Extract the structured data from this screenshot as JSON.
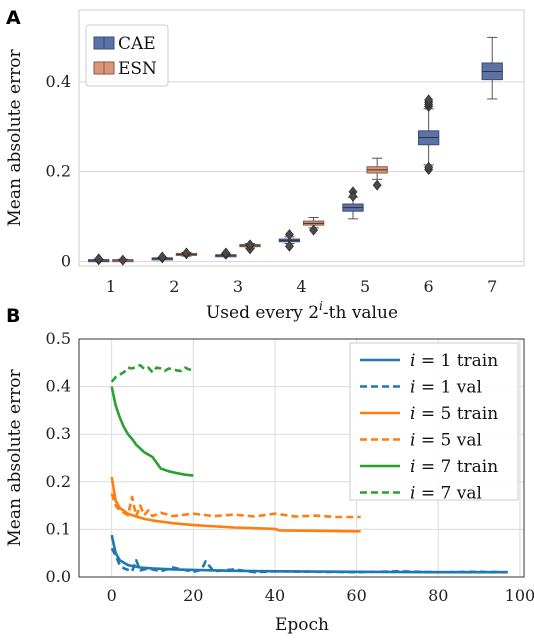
{
  "figure": {
    "panel_a_letter": "A",
    "panel_b_letter": "B"
  },
  "chart_data": [
    {
      "type": "box",
      "panel": "A",
      "xlabel": "Used every 2",
      "xlabel_sup": "i",
      "xlabel_tail": "-th value",
      "ylabel": "Mean absolute error",
      "ylim": [
        -0.01,
        0.56
      ],
      "yticks": [
        0,
        0.2,
        0.4
      ],
      "ytick_labels": [
        "0",
        "0.2",
        "0.4"
      ],
      "categories": [
        "1",
        "2",
        "3",
        "4",
        "5",
        "6",
        "7"
      ],
      "grid": "horizontal",
      "legend_position": "top-left",
      "colors": {
        "CAE": "#5a72a8",
        "ESN": "#d99679"
      },
      "series": [
        {
          "name": "CAE",
          "boxes": [
            {
              "x": "1",
              "q1": 0.002,
              "median": 0.003,
              "q3": 0.004,
              "whisker_low": 0.001,
              "whisker_high": 0.005,
              "outliers": [
                0.004,
                0.006
              ]
            },
            {
              "x": "2",
              "q1": 0.006,
              "median": 0.007,
              "q3": 0.008,
              "whisker_low": 0.005,
              "whisker_high": 0.009,
              "outliers": [
                0.008,
                0.01
              ]
            },
            {
              "x": "3",
              "q1": 0.013,
              "median": 0.014,
              "q3": 0.015,
              "whisker_low": 0.012,
              "whisker_high": 0.017,
              "outliers": [
                0.016,
                0.019
              ]
            },
            {
              "x": "4",
              "q1": 0.044,
              "median": 0.047,
              "q3": 0.05,
              "whisker_low": 0.04,
              "whisker_high": 0.055,
              "outliers": [
                0.034,
                0.06
              ]
            },
            {
              "x": "5",
              "q1": 0.112,
              "median": 0.12,
              "q3": 0.128,
              "whisker_low": 0.095,
              "whisker_high": 0.143,
              "outliers": [
                0.155,
                0.145
              ]
            },
            {
              "x": "6",
              "q1": 0.26,
              "median": 0.276,
              "q3": 0.291,
              "whisker_low": 0.215,
              "whisker_high": 0.34,
              "outliers": [
                0.205,
                0.21,
                0.345,
                0.35,
                0.355,
                0.36
              ]
            },
            {
              "x": "7",
              "q1": 0.405,
              "median": 0.423,
              "q3": 0.442,
              "whisker_low": 0.362,
              "whisker_high": 0.499,
              "outliers": []
            }
          ]
        },
        {
          "name": "ESN",
          "boxes": [
            {
              "x": "1",
              "q1": 0.002,
              "median": 0.003,
              "q3": 0.004,
              "whisker_low": 0.001,
              "whisker_high": 0.005,
              "outliers": [
                0.003
              ]
            },
            {
              "x": "2",
              "q1": 0.014,
              "median": 0.016,
              "q3": 0.018,
              "whisker_low": 0.012,
              "whisker_high": 0.02,
              "outliers": [
                0.017,
                0.019
              ]
            },
            {
              "x": "3",
              "q1": 0.033,
              "median": 0.035,
              "q3": 0.038,
              "whisker_low": 0.03,
              "whisker_high": 0.04,
              "outliers": [
                0.028,
                0.037
              ]
            },
            {
              "x": "4",
              "q1": 0.081,
              "median": 0.085,
              "q3": 0.09,
              "whisker_low": 0.075,
              "whisker_high": 0.098,
              "outliers": [
                0.07
              ]
            },
            {
              "x": "5",
              "q1": 0.197,
              "median": 0.204,
              "q3": 0.211,
              "whisker_low": 0.183,
              "whisker_high": 0.23,
              "outliers": [
                0.17
              ]
            },
            {
              "x": "6",
              "q1": null,
              "median": null,
              "q3": null,
              "whisker_low": null,
              "whisker_high": null,
              "outliers": []
            },
            {
              "x": "7",
              "q1": null,
              "median": null,
              "q3": null,
              "whisker_low": null,
              "whisker_high": null,
              "outliers": []
            }
          ]
        }
      ]
    },
    {
      "type": "line",
      "panel": "B",
      "xlabel": "Epoch",
      "ylabel": "Mean absolute error",
      "xlim": [
        -8,
        101
      ],
      "ylim": [
        0,
        0.5
      ],
      "xticks": [
        0,
        20,
        40,
        60,
        80,
        100
      ],
      "xtick_labels": [
        "0",
        "20",
        "40",
        "60",
        "80",
        "100"
      ],
      "yticks": [
        0,
        0.1,
        0.2,
        0.3,
        0.4,
        0.5
      ],
      "ytick_labels": [
        "0.0",
        "0.1",
        "0.2",
        "0.3",
        "0.4",
        "0.5"
      ],
      "grid": true,
      "legend_position": "top-right",
      "series": [
        {
          "name_var": "i",
          "name_rest": " = 1 train",
          "color": "#1f77b4",
          "style": "solid",
          "x": [
            0,
            1,
            2,
            4,
            7,
            10,
            15,
            20,
            30,
            40,
            60,
            80,
            97
          ],
          "y": [
            0.088,
            0.05,
            0.035,
            0.025,
            0.02,
            0.018,
            0.016,
            0.015,
            0.013,
            0.012,
            0.011,
            0.01,
            0.01
          ]
        },
        {
          "name_var": "i",
          "name_rest": " = 1 val",
          "color": "#1f77b4",
          "style": "dashed",
          "x": [
            0,
            1,
            2,
            3,
            5,
            6,
            7,
            9,
            12,
            15,
            20,
            22,
            23,
            25,
            30,
            35,
            40,
            50,
            60,
            70,
            80,
            90,
            97
          ],
          "y": [
            0.06,
            0.045,
            0.025,
            0.018,
            0.012,
            0.035,
            0.014,
            0.018,
            0.012,
            0.02,
            0.011,
            0.015,
            0.033,
            0.012,
            0.016,
            0.01,
            0.012,
            0.011,
            0.01,
            0.012,
            0.01,
            0.011,
            0.01
          ]
        },
        {
          "name_var": "i",
          "name_rest": " = 5 train",
          "color": "#ff7f0e",
          "style": "solid",
          "x": [
            0,
            1,
            2,
            4,
            6,
            8,
            10,
            15,
            20,
            30,
            40,
            41,
            50,
            61
          ],
          "y": [
            0.21,
            0.16,
            0.145,
            0.133,
            0.127,
            0.122,
            0.119,
            0.113,
            0.109,
            0.104,
            0.101,
            0.098,
            0.097,
            0.096
          ]
        },
        {
          "name_var": "i",
          "name_rest": " = 5 val",
          "color": "#ff7f0e",
          "style": "dashed",
          "x": [
            0,
            1,
            2,
            3,
            4,
            5,
            6,
            7,
            8,
            9,
            10,
            12,
            15,
            20,
            25,
            30,
            35,
            40,
            45,
            50,
            55,
            61
          ],
          "y": [
            0.175,
            0.15,
            0.14,
            0.135,
            0.13,
            0.168,
            0.128,
            0.15,
            0.13,
            0.14,
            0.128,
            0.135,
            0.128,
            0.133,
            0.128,
            0.131,
            0.127,
            0.133,
            0.127,
            0.129,
            0.126,
            0.126
          ]
        },
        {
          "name_var": "i",
          "name_rest": " = 7 train",
          "color": "#2ca02c",
          "style": "solid",
          "x": [
            0,
            1,
            2,
            3,
            4,
            5,
            6,
            8,
            10,
            12,
            14,
            16,
            18,
            20
          ],
          "y": [
            0.4,
            0.36,
            0.335,
            0.315,
            0.3,
            0.29,
            0.278,
            0.262,
            0.252,
            0.228,
            0.222,
            0.218,
            0.215,
            0.213
          ]
        },
        {
          "name_var": "i",
          "name_rest": " = 7 val",
          "color": "#2ca02c",
          "style": "dashed",
          "x": [
            0,
            1,
            2,
            3,
            4,
            5,
            6,
            7,
            8,
            9,
            10,
            11,
            12,
            13,
            14,
            15,
            16,
            17,
            18,
            19,
            20
          ],
          "y": [
            0.41,
            0.42,
            0.425,
            0.43,
            0.44,
            0.438,
            0.442,
            0.445,
            0.437,
            0.44,
            0.43,
            0.44,
            0.438,
            0.433,
            0.438,
            0.436,
            0.434,
            0.433,
            0.44,
            0.436,
            0.435
          ]
        }
      ]
    }
  ]
}
